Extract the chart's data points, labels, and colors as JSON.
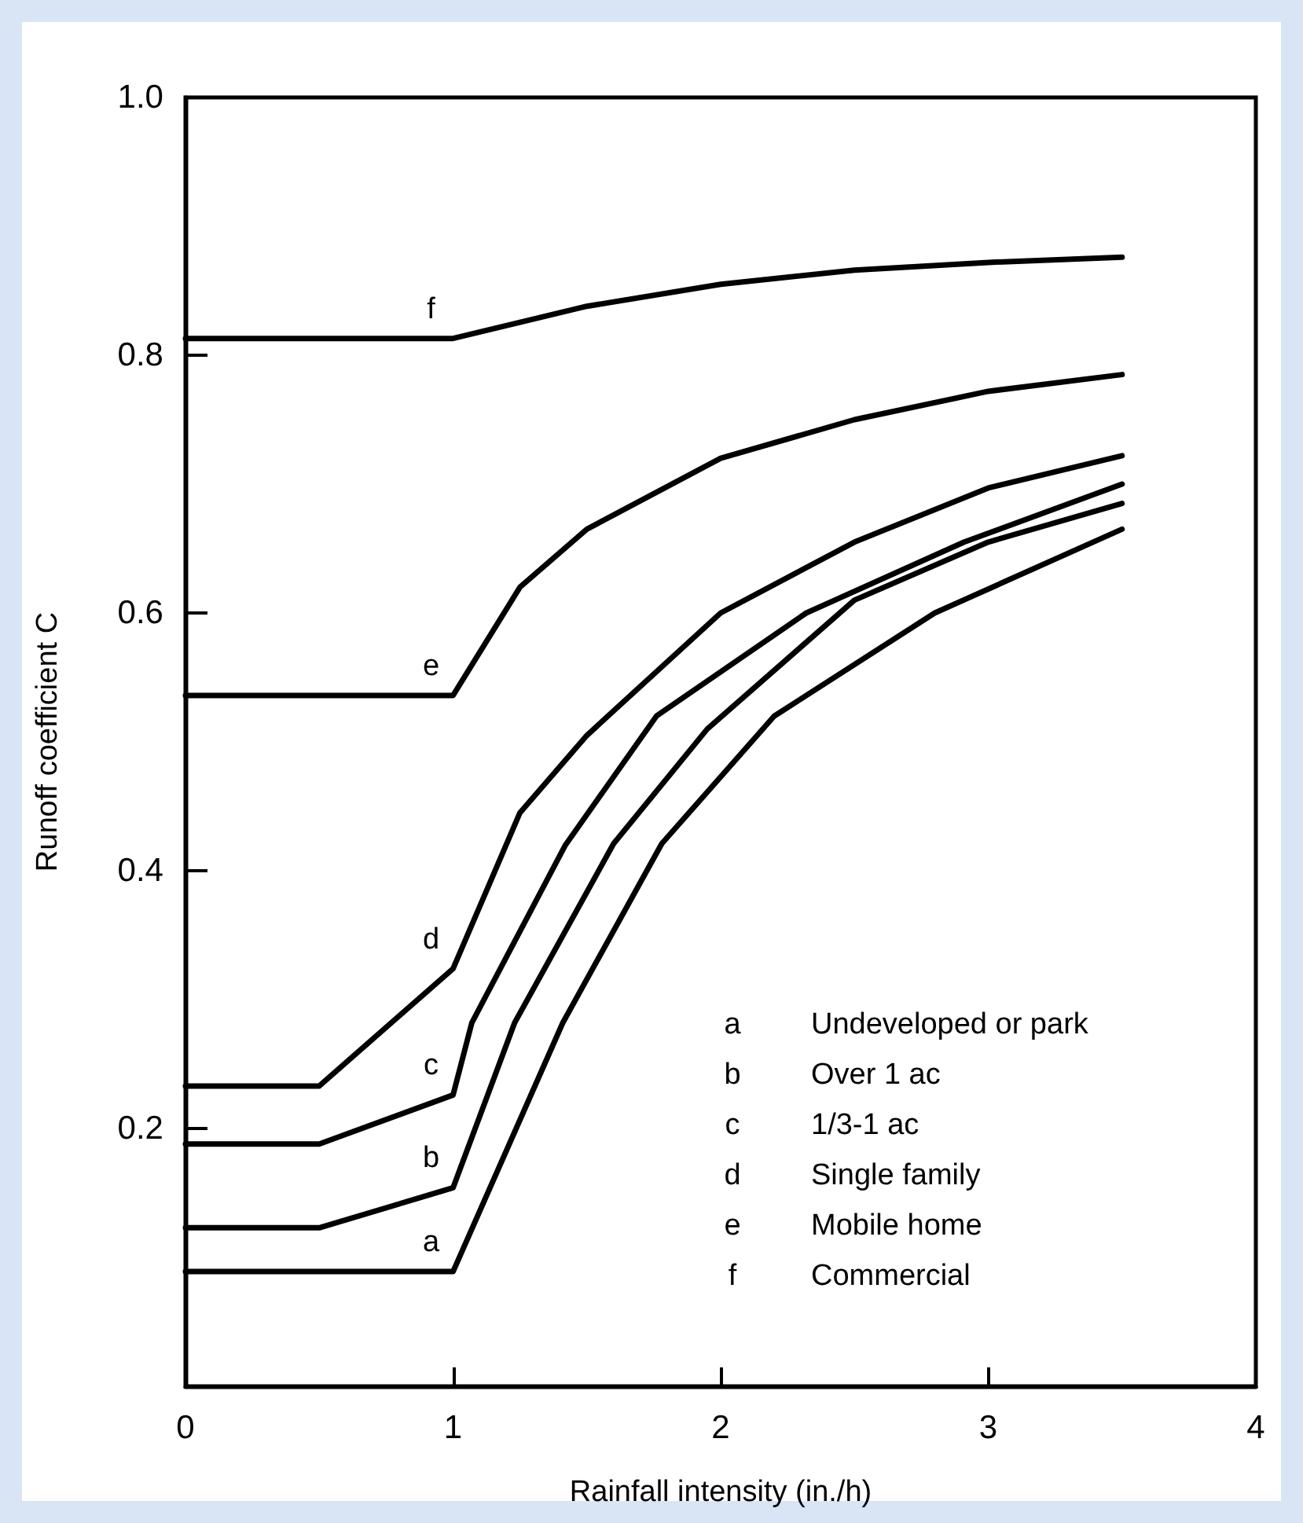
{
  "chart_data": {
    "type": "line",
    "xlabel": "Rainfall intensity (in./h)",
    "ylabel": "Runoff coefficient C",
    "xlim": [
      0,
      4
    ],
    "xticks": [
      0,
      1,
      2,
      3,
      4
    ],
    "ylim": [
      0,
      1
    ],
    "yticks": [
      {
        "value": 0,
        "label": null
      },
      {
        "value": 0.2,
        "label": "0.2"
      },
      {
        "value": 0.4,
        "label": "0.4"
      },
      {
        "value": 0.6,
        "label": "0.6"
      },
      {
        "value": 0.8,
        "label": "0.8"
      },
      {
        "value": 1,
        "label": "1.0"
      }
    ],
    "grid": false,
    "marker": "none",
    "line_style": "solid",
    "series": [
      {
        "name": "a",
        "color": "#000000",
        "x": [
          0,
          1,
          1.41,
          1.78,
          2.2,
          2.8,
          3.5
        ],
        "values": [
          0.089,
          0.089,
          0.282,
          0.421,
          0.52,
          0.6,
          0.665
        ]
      },
      {
        "name": "b",
        "color": "#000000",
        "x": [
          0,
          0.5,
          1,
          1.23,
          1.6,
          1.95,
          2.5,
          3,
          3.5
        ],
        "values": [
          0.123,
          0.123,
          0.154,
          0.282,
          0.421,
          0.51,
          0.61,
          0.655,
          0.685
        ]
      },
      {
        "name": "c",
        "color": "#000000",
        "x": [
          0,
          0.5,
          1,
          1.07,
          1.42,
          1.76,
          2.32,
          2.91,
          3.5
        ],
        "values": [
          0.188,
          0.188,
          0.226,
          0.282,
          0.42,
          0.52,
          0.6,
          0.655,
          0.7
        ]
      },
      {
        "name": "d",
        "color": "#000000",
        "x": [
          0,
          0.5,
          1,
          1.25,
          1.5,
          2,
          2.5,
          3,
          3.5
        ],
        "values": [
          0.233,
          0.233,
          0.324,
          0.445,
          0.505,
          0.6,
          0.655,
          0.697,
          0.722
        ]
      },
      {
        "name": "e",
        "color": "#000000",
        "x": [
          0,
          1,
          1.25,
          1.5,
          2,
          2.5,
          3,
          3.5
        ],
        "values": [
          0.536,
          0.536,
          0.62,
          0.665,
          0.72,
          0.75,
          0.772,
          0.785
        ]
      },
      {
        "name": "f",
        "color": "#000000",
        "x": [
          0,
          1,
          1.5,
          2,
          2.5,
          3,
          3.5
        ],
        "values": [
          0.813,
          0.813,
          0.838,
          0.855,
          0.866,
          0.872,
          0.876
        ]
      }
    ],
    "annotations": [
      "a Undeveloped or park",
      "b Over 1 ac",
      "c 1/3-1 ac",
      "d Single family",
      "e Mobile home",
      "f Commercial"
    ]
  }
}
